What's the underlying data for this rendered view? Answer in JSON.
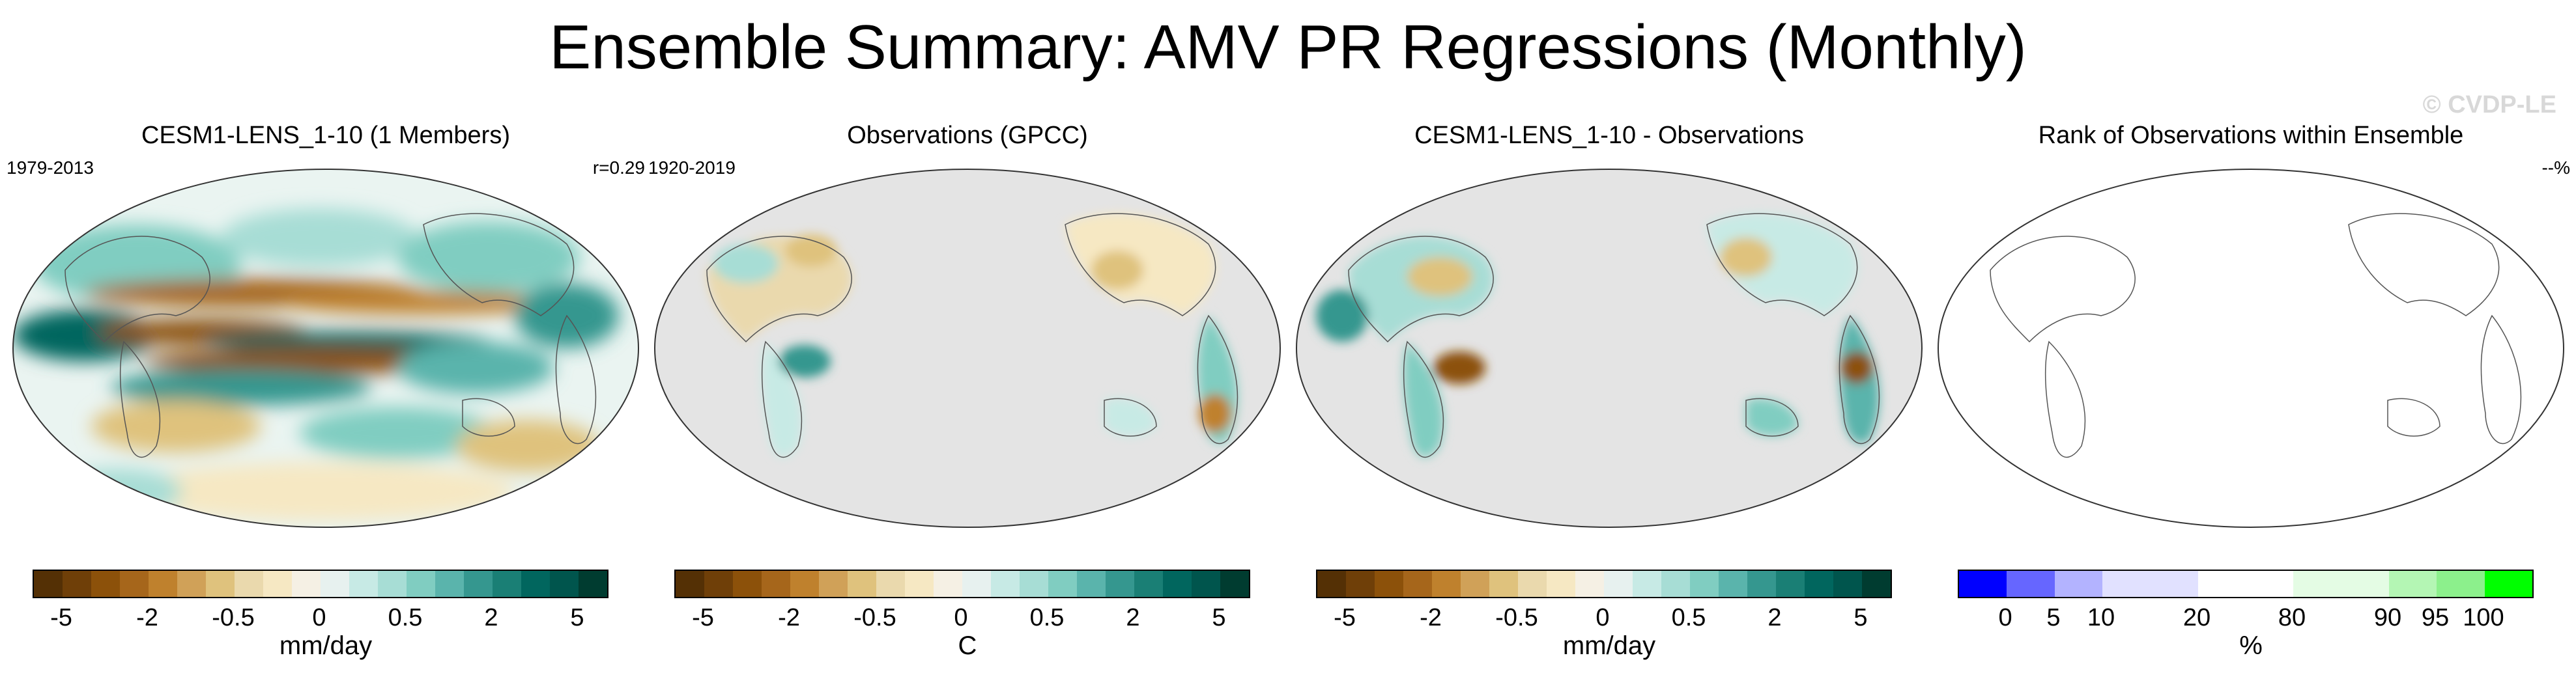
{
  "title": "Ensemble Summary: AMV PR Regressions (Monthly)",
  "watermark": "© CVDP-LE",
  "colors": {
    "ocean_grey": "#e4e4e4",
    "coast": "#555555",
    "brown_bg": [
      "#543005",
      "#6f3f08",
      "#8c510a",
      "#a6661b",
      "#bf812d",
      "#d0a158",
      "#dfc27d",
      "#ead9ad",
      "#f6e8c3",
      "#f5f0e4"
    ],
    "green_bg": [
      "#e7f1ef",
      "#c7eae5",
      "#a7ddd5",
      "#80cdc1",
      "#5ab4ac",
      "#35978f",
      "#1a7f75",
      "#01665e",
      "#00554d",
      "#003c30"
    ],
    "rank": [
      "#0000ff",
      "#6666ff",
      "#b3b3ff",
      "#e1e1ff",
      "#e1e1ff",
      "#ffffff",
      "#ffffff",
      "#e4fce4",
      "#e4fce4",
      "#b4f6b4",
      "#8cf08c",
      "#00ff00"
    ]
  },
  "panels": [
    {
      "title": "CESM1-LENS_1-10 (1 Members)",
      "left_label": "1979-2013",
      "right_label": "r=0.29",
      "units": "mm/day",
      "ticks": [
        "-5",
        "-2",
        "-0.5",
        "0",
        "0.5",
        "2",
        "5"
      ]
    },
    {
      "title": "Observations (GPCC)",
      "left_label": "1920-2019",
      "right_label": "",
      "units": "C",
      "ticks": [
        "-5",
        "-2",
        "-0.5",
        "0",
        "0.5",
        "2",
        "5"
      ]
    },
    {
      "title": "CESM1-LENS_1-10 - Observations",
      "left_label": "",
      "right_label": "",
      "units": "mm/day",
      "ticks": [
        "-5",
        "-2",
        "-0.5",
        "0",
        "0.5",
        "2",
        "5"
      ]
    },
    {
      "title": "Rank of Observations within Ensemble",
      "left_label": "",
      "right_label": "--%",
      "units": "%",
      "ticks": [
        "0",
        "5",
        "10",
        "20",
        "80",
        "90",
        "95",
        "100"
      ]
    }
  ]
}
